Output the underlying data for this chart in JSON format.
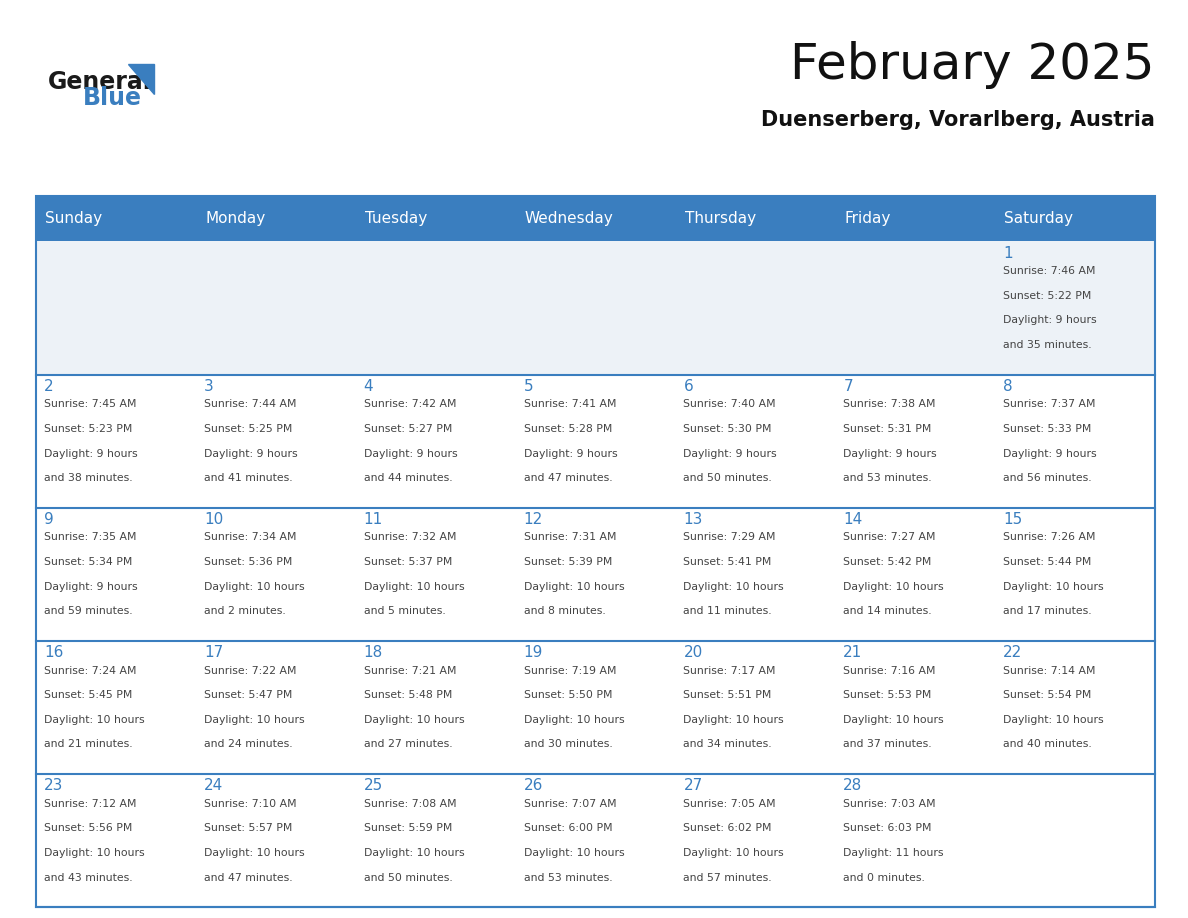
{
  "title": "February 2025",
  "subtitle": "Duenserberg, Vorarlberg, Austria",
  "days_of_week": [
    "Sunday",
    "Monday",
    "Tuesday",
    "Wednesday",
    "Thursday",
    "Friday",
    "Saturday"
  ],
  "header_bg": "#3a7ebf",
  "header_text": "#ffffff",
  "cell_bg_light": "#edf2f7",
  "cell_bg_white": "#ffffff",
  "separator_color": "#3a7ebf",
  "day_num_color": "#3a7ebf",
  "text_color": "#444444",
  "logo_general_color": "#1a1a1a",
  "logo_blue_color": "#3a7ebf",
  "calendar_data": [
    [
      null,
      null,
      null,
      null,
      null,
      null,
      {
        "day": 1,
        "sunrise": "7:46 AM",
        "sunset": "5:22 PM",
        "daylight1": "9 hours",
        "daylight2": "and 35 minutes."
      }
    ],
    [
      {
        "day": 2,
        "sunrise": "7:45 AM",
        "sunset": "5:23 PM",
        "daylight1": "9 hours",
        "daylight2": "and 38 minutes."
      },
      {
        "day": 3,
        "sunrise": "7:44 AM",
        "sunset": "5:25 PM",
        "daylight1": "9 hours",
        "daylight2": "and 41 minutes."
      },
      {
        "day": 4,
        "sunrise": "7:42 AM",
        "sunset": "5:27 PM",
        "daylight1": "9 hours",
        "daylight2": "and 44 minutes."
      },
      {
        "day": 5,
        "sunrise": "7:41 AM",
        "sunset": "5:28 PM",
        "daylight1": "9 hours",
        "daylight2": "and 47 minutes."
      },
      {
        "day": 6,
        "sunrise": "7:40 AM",
        "sunset": "5:30 PM",
        "daylight1": "9 hours",
        "daylight2": "and 50 minutes."
      },
      {
        "day": 7,
        "sunrise": "7:38 AM",
        "sunset": "5:31 PM",
        "daylight1": "9 hours",
        "daylight2": "and 53 minutes."
      },
      {
        "day": 8,
        "sunrise": "7:37 AM",
        "sunset": "5:33 PM",
        "daylight1": "9 hours",
        "daylight2": "and 56 minutes."
      }
    ],
    [
      {
        "day": 9,
        "sunrise": "7:35 AM",
        "sunset": "5:34 PM",
        "daylight1": "9 hours",
        "daylight2": "and 59 minutes."
      },
      {
        "day": 10,
        "sunrise": "7:34 AM",
        "sunset": "5:36 PM",
        "daylight1": "10 hours",
        "daylight2": "and 2 minutes."
      },
      {
        "day": 11,
        "sunrise": "7:32 AM",
        "sunset": "5:37 PM",
        "daylight1": "10 hours",
        "daylight2": "and 5 minutes."
      },
      {
        "day": 12,
        "sunrise": "7:31 AM",
        "sunset": "5:39 PM",
        "daylight1": "10 hours",
        "daylight2": "and 8 minutes."
      },
      {
        "day": 13,
        "sunrise": "7:29 AM",
        "sunset": "5:41 PM",
        "daylight1": "10 hours",
        "daylight2": "and 11 minutes."
      },
      {
        "day": 14,
        "sunrise": "7:27 AM",
        "sunset": "5:42 PM",
        "daylight1": "10 hours",
        "daylight2": "and 14 minutes."
      },
      {
        "day": 15,
        "sunrise": "7:26 AM",
        "sunset": "5:44 PM",
        "daylight1": "10 hours",
        "daylight2": "and 17 minutes."
      }
    ],
    [
      {
        "day": 16,
        "sunrise": "7:24 AM",
        "sunset": "5:45 PM",
        "daylight1": "10 hours",
        "daylight2": "and 21 minutes."
      },
      {
        "day": 17,
        "sunrise": "7:22 AM",
        "sunset": "5:47 PM",
        "daylight1": "10 hours",
        "daylight2": "and 24 minutes."
      },
      {
        "day": 18,
        "sunrise": "7:21 AM",
        "sunset": "5:48 PM",
        "daylight1": "10 hours",
        "daylight2": "and 27 minutes."
      },
      {
        "day": 19,
        "sunrise": "7:19 AM",
        "sunset": "5:50 PM",
        "daylight1": "10 hours",
        "daylight2": "and 30 minutes."
      },
      {
        "day": 20,
        "sunrise": "7:17 AM",
        "sunset": "5:51 PM",
        "daylight1": "10 hours",
        "daylight2": "and 34 minutes."
      },
      {
        "day": 21,
        "sunrise": "7:16 AM",
        "sunset": "5:53 PM",
        "daylight1": "10 hours",
        "daylight2": "and 37 minutes."
      },
      {
        "day": 22,
        "sunrise": "7:14 AM",
        "sunset": "5:54 PM",
        "daylight1": "10 hours",
        "daylight2": "and 40 minutes."
      }
    ],
    [
      {
        "day": 23,
        "sunrise": "7:12 AM",
        "sunset": "5:56 PM",
        "daylight1": "10 hours",
        "daylight2": "and 43 minutes."
      },
      {
        "day": 24,
        "sunrise": "7:10 AM",
        "sunset": "5:57 PM",
        "daylight1": "10 hours",
        "daylight2": "and 47 minutes."
      },
      {
        "day": 25,
        "sunrise": "7:08 AM",
        "sunset": "5:59 PM",
        "daylight1": "10 hours",
        "daylight2": "and 50 minutes."
      },
      {
        "day": 26,
        "sunrise": "7:07 AM",
        "sunset": "6:00 PM",
        "daylight1": "10 hours",
        "daylight2": "and 53 minutes."
      },
      {
        "day": 27,
        "sunrise": "7:05 AM",
        "sunset": "6:02 PM",
        "daylight1": "10 hours",
        "daylight2": "and 57 minutes."
      },
      {
        "day": 28,
        "sunrise": "7:03 AM",
        "sunset": "6:03 PM",
        "daylight1": "11 hours",
        "daylight2": "and 0 minutes."
      },
      null
    ]
  ]
}
